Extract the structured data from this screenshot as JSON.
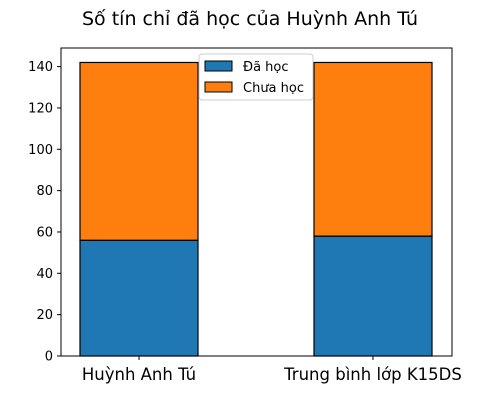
{
  "chart_data": {
    "type": "bar",
    "stacked": true,
    "title": "Số tín chỉ đã học của Huỳnh Anh Tú",
    "xlabel": "",
    "ylabel": "",
    "categories": [
      "Huỳnh Anh Tú",
      "Trung bình lớp K15DS"
    ],
    "series": [
      {
        "name": "Đã học",
        "values": [
          56,
          58
        ],
        "color": "#1f77b4"
      },
      {
        "name": "Chưa học",
        "values": [
          86,
          84
        ],
        "color": "#ff7f0e"
      }
    ],
    "ylim": [
      0,
      149
    ],
    "yticks": [
      0,
      20,
      40,
      60,
      80,
      100,
      120,
      140
    ],
    "grid": false,
    "legend_position": "top-center"
  }
}
